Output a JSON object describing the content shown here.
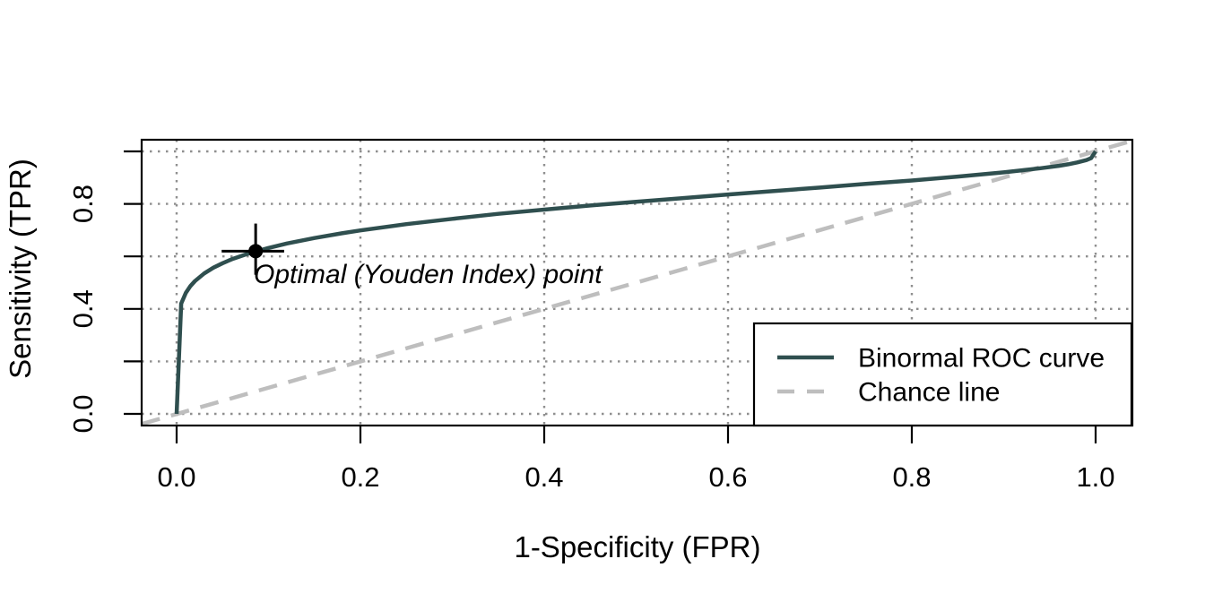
{
  "chart_data": {
    "type": "line",
    "title": "",
    "xlabel": "1-Specificity (FPR)",
    "ylabel": "Sensitivity (TPR)",
    "xlim": [
      0,
      1
    ],
    "ylim": [
      0,
      1
    ],
    "x_ticks": {
      "values": [
        0,
        0.2,
        0.4,
        0.6,
        0.8,
        1
      ],
      "labels": [
        "0.0",
        "0.2",
        "0.4",
        "0.6",
        "0.8",
        "1.0"
      ]
    },
    "y_ticks": {
      "values": [
        0,
        0.2,
        0.4,
        0.6,
        0.8,
        1
      ],
      "labels": [
        "0.0",
        "",
        "0.4",
        "",
        "0.8",
        ""
      ]
    },
    "grid": {
      "style": "dotted",
      "color": "#8f8f8f"
    },
    "series": [
      {
        "name": "Binormal ROC curve",
        "color": "#2F4F4F",
        "line_style": "solid",
        "line_width": 3,
        "points": [
          [
            0,
            0
          ],
          [
            0.005,
            0.42
          ],
          [
            0.01,
            0.461
          ],
          [
            0.015,
            0.487
          ],
          [
            0.02,
            0.506
          ],
          [
            0.03,
            0.535
          ],
          [
            0.04,
            0.557
          ],
          [
            0.05,
            0.574
          ],
          [
            0.06,
            0.589
          ],
          [
            0.08,
            0.613
          ],
          [
            0.1,
            0.632
          ],
          [
            0.12,
            0.649
          ],
          [
            0.15,
            0.67
          ],
          [
            0.18,
            0.688
          ],
          [
            0.2,
            0.699
          ],
          [
            0.25,
            0.723
          ],
          [
            0.3,
            0.743
          ],
          [
            0.35,
            0.762
          ],
          [
            0.4,
            0.778
          ],
          [
            0.45,
            0.794
          ],
          [
            0.5,
            0.808
          ],
          [
            0.55,
            0.822
          ],
          [
            0.6,
            0.836
          ],
          [
            0.65,
            0.849
          ],
          [
            0.7,
            0.862
          ],
          [
            0.75,
            0.876
          ],
          [
            0.8,
            0.889
          ],
          [
            0.85,
            0.904
          ],
          [
            0.9,
            0.92
          ],
          [
            0.92,
            0.928
          ],
          [
            0.94,
            0.936
          ],
          [
            0.96,
            0.945
          ],
          [
            0.97,
            0.951
          ],
          [
            0.98,
            0.958
          ],
          [
            0.99,
            0.967
          ],
          [
            0.995,
            0.974
          ],
          [
            1,
            1
          ]
        ]
      },
      {
        "name": "Chance line",
        "color": "#BEBEBE",
        "line_style": "dashed",
        "line_width": 3,
        "points": [
          [
            0,
            0
          ],
          [
            1,
            1
          ]
        ]
      }
    ],
    "annotation": {
      "label": "Optimal (Youden Index) point",
      "point": {
        "fpr": 0.086,
        "tpr": 0.62
      },
      "fpr_whisker": [
        0.049,
        0.117
      ],
      "tpr_whisker": [
        0.53,
        0.725
      ],
      "marker": {
        "shape": "filled-circle",
        "color": "#000000"
      }
    },
    "legend": {
      "position": "bottomright",
      "entries": [
        {
          "label": "Binormal ROC curve",
          "color": "#2F4F4F",
          "line_style": "solid"
        },
        {
          "label": "Chance line",
          "color": "#BEBEBE",
          "line_style": "dashed"
        }
      ]
    }
  }
}
